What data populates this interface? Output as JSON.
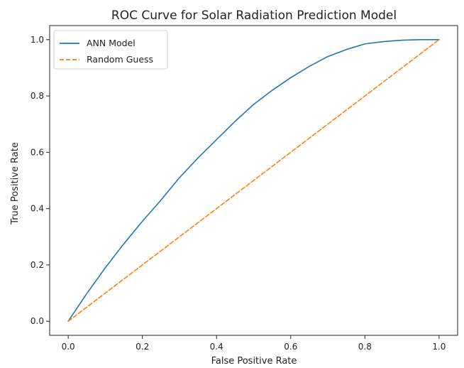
{
  "chart_data": {
    "type": "line",
    "title": "ROC Curve for Solar Radiation Prediction Model",
    "xlabel": "False Positive Rate",
    "ylabel": "True Positive Rate",
    "xlim": [
      -0.05,
      1.05
    ],
    "ylim": [
      -0.05,
      1.05
    ],
    "xticks": [
      0.0,
      0.2,
      0.4,
      0.6,
      0.8,
      1.0
    ],
    "yticks": [
      0.0,
      0.2,
      0.4,
      0.6,
      0.8,
      1.0
    ],
    "xtick_labels": [
      "0.0",
      "0.2",
      "0.4",
      "0.6",
      "0.8",
      "1.0"
    ],
    "ytick_labels": [
      "0.0",
      "0.2",
      "0.4",
      "0.6",
      "0.8",
      "1.0"
    ],
    "grid": false,
    "legend_position": "top-left",
    "series": [
      {
        "name": "ANN Model",
        "color": "#1f77b4",
        "style": "solid",
        "x": [
          0.0,
          0.05,
          0.1,
          0.15,
          0.2,
          0.25,
          0.3,
          0.35,
          0.4,
          0.45,
          0.5,
          0.55,
          0.6,
          0.65,
          0.7,
          0.75,
          0.8,
          0.85,
          0.9,
          0.95,
          1.0
        ],
        "y": [
          0.0,
          0.098,
          0.19,
          0.275,
          0.355,
          0.43,
          0.51,
          0.58,
          0.645,
          0.71,
          0.77,
          0.82,
          0.865,
          0.905,
          0.94,
          0.965,
          0.985,
          0.993,
          0.998,
          1.0,
          1.0
        ]
      },
      {
        "name": "Random Guess",
        "color": "#ff7f0e",
        "style": "dashed",
        "x": [
          0.0,
          1.0
        ],
        "y": [
          0.0,
          1.0
        ]
      }
    ]
  }
}
